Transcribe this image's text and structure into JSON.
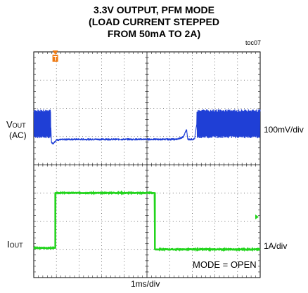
{
  "chart_data": {
    "type": "line",
    "title_lines": [
      "3.3V OUTPUT, PFM MODE",
      "(LOAD CURRENT STEPPED",
      "FROM 50mA TO 2A)"
    ],
    "figure_tag": "toc07",
    "trigger_marker": "T",
    "xlabel": "1ms/div",
    "grid": true,
    "divisions": {
      "x": 10,
      "y": 8
    },
    "annotation": "MODE = OPEN",
    "series": [
      {
        "name": "VOUT (AC)",
        "label_main": "V",
        "label_sub": "OUT",
        "label_extra": "(AC)",
        "scale": "100mV/div",
        "color": "#1f3fd6",
        "x": [
          0,
          0.75,
          0.78,
          0.85,
          1.0,
          1.5,
          2.5,
          3.5,
          4.5,
          5.5,
          6.3,
          6.6,
          6.75,
          6.8,
          6.9,
          7.1,
          7.2,
          8.0,
          9.0,
          10.0
        ],
        "y": [
          0.15,
          0.15,
          -0.5,
          -0.55,
          -0.42,
          -0.4,
          -0.4,
          -0.4,
          -0.4,
          -0.4,
          -0.4,
          -0.32,
          -0.05,
          -0.4,
          -0.4,
          -0.4,
          0.15,
          0.15,
          0.15,
          0.15
        ],
        "ripple_ranges": [
          [
            0,
            0.75
          ],
          [
            7.2,
            10.0
          ]
        ],
        "ripple_amplitude_div": 0.5
      },
      {
        "name": "IOUT",
        "label_main": "I",
        "label_sub": "OUT",
        "scale": "1A/div",
        "color": "#22d41c",
        "x": [
          0,
          0.95,
          0.95,
          5.35,
          5.35,
          10.0
        ],
        "y": [
          0.05,
          0.05,
          2.0,
          2.0,
          0.0,
          0.0
        ]
      }
    ]
  }
}
